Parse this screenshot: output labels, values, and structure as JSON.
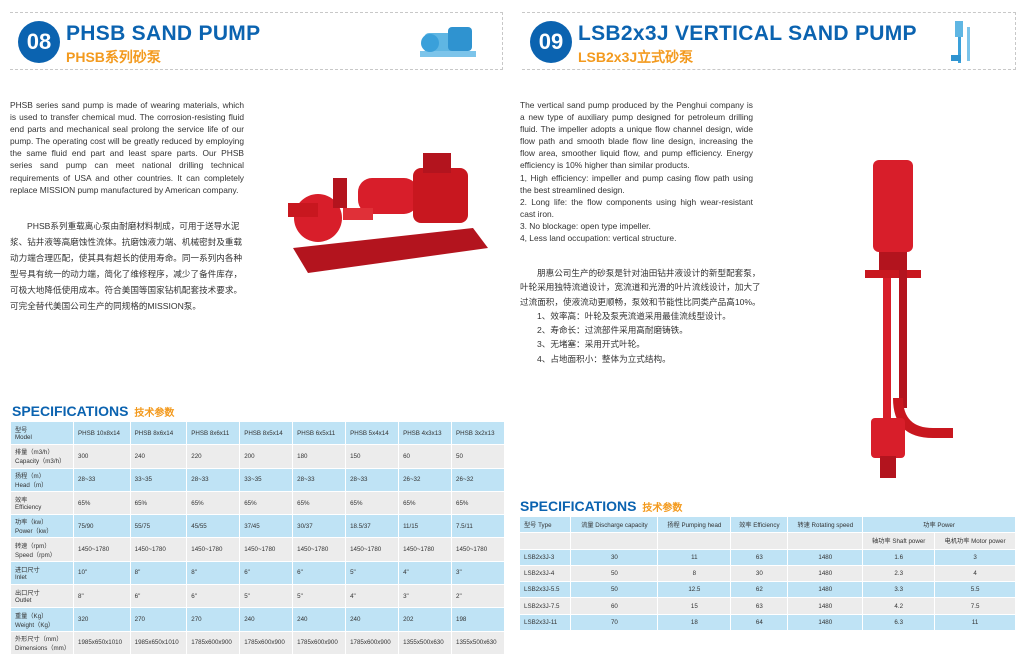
{
  "left": {
    "number": "08",
    "title": "PHSB SAND PUMP",
    "subtitle": "PHSB系列砂泵",
    "description_en": "PHSB series sand pump is made of wearing materials, which is used to transfer chemical mud. The corrosion-resisting fluid end parts and mechanical seal prolong the service life of our pump. The operating cost will be greatly reduced by employing the same fluid end part and least spare parts. Our PHSB series sand pump can meet national drilling technical requirements of USA and other countries. It can completely replace MISSION pump manufactured by American company.",
    "description_cn": "PHSB系列重载离心泵由耐磨材料制成，可用于送导水泥浆、钻井液等高磨蚀性流体。抗磨蚀液力端、机械密封及重载动力端合理匹配，使其具有超长的使用寿命。同一系列内各种型号具有统一的动力端，简化了维修程序，减少了备件库存，可极大地降低使用成本。符合美国等国家钻机配套技术要求。可完全替代美国公司生产的同规格的MISSION泵。",
    "spec_title": "SPECIFICATIONS",
    "spec_title_cn": "技术参数",
    "table": [
      {
        "label_cn": "型号",
        "label_en": "Model",
        "values": [
          "PHSB 10x8x14",
          "PHSB 8x6x14",
          "PHSB 8x6x11",
          "PHSB 8x5x14",
          "PHSB 6x5x11",
          "PHSB 5x4x14",
          "PHSB 4x3x13",
          "PHSB 3x2x13"
        ]
      },
      {
        "label_cn": "排量（m3/h）",
        "label_en": "Capacity（m3/h）",
        "values": [
          "300",
          "240",
          "220",
          "200",
          "180",
          "150",
          "60",
          "50"
        ]
      },
      {
        "label_cn": "扬程（m）",
        "label_en": "Head（m）",
        "values": [
          "28~33",
          "33~35",
          "28~33",
          "33~35",
          "28~33",
          "28~33",
          "26~32",
          "26~32"
        ]
      },
      {
        "label_cn": "效率",
        "label_en": "Efficiency",
        "values": [
          "65%",
          "65%",
          "65%",
          "65%",
          "65%",
          "65%",
          "65%",
          "65%"
        ]
      },
      {
        "label_cn": "功率（kw）",
        "label_en": "Power（kw）",
        "values": [
          "75/90",
          "55/75",
          "45/55",
          "37/45",
          "30/37",
          "18.5/37",
          "11/15",
          "7.5/11"
        ]
      },
      {
        "label_cn": "转速（rpm）",
        "label_en": "Speed（rpm）",
        "values": [
          "1450~1780",
          "1450~1780",
          "1450~1780",
          "1450~1780",
          "1450~1780",
          "1450~1780",
          "1450~1780",
          "1450~1780"
        ]
      },
      {
        "label_cn": "进口尺寸",
        "label_en": "Inlet",
        "values": [
          "10\"",
          "8\"",
          "8\"",
          "6\"",
          "6\"",
          "5\"",
          "4\"",
          "3\""
        ]
      },
      {
        "label_cn": "出口尺寸",
        "label_en": "Outlet",
        "values": [
          "8\"",
          "6\"",
          "6\"",
          "5\"",
          "5\"",
          "4\"",
          "3\"",
          "2\""
        ]
      },
      {
        "label_cn": "重量（Kg）",
        "label_en": "Weight（Kg）",
        "values": [
          "320",
          "270",
          "270",
          "240",
          "240",
          "240",
          "202",
          "198"
        ]
      },
      {
        "label_cn": "外形尺寸（mm）",
        "label_en": "Dimensions（mm）",
        "values": [
          "1985x650x1010",
          "1985x650x1010",
          "1785x600x900",
          "1785x600x900",
          "1785x600x900",
          "1785x600x900",
          "1355x500x630",
          "1355x500x630"
        ]
      }
    ]
  },
  "right": {
    "number": "09",
    "title": "LSB2x3J VERTICAL SAND PUMP",
    "subtitle": "LSB2x3J立式砂泵",
    "description_en": "The vertical sand pump produced by the Penghui company is a new type of auxiliary pump designed for petroleum drilling fluid. The impeller adopts a unique flow channel design, wide flow path and smooth blade flow line design, increasing the flow area, smoother liquid flow, and pump efficiency. Energy efficiency is 10% higher than similar products.",
    "features_en": [
      "1, High efficiency: impeller and pump casing flow path using the best streamlined design.",
      "2. Long life: the flow components using high wear-resistant cast iron.",
      "3. No blockage: open type impeller.",
      "4, Less land occupation: vertical structure."
    ],
    "description_cn": "朋惠公司生产的砂泵是针对油田钻井液设计的新型配套泵，叶轮采用独特流道设计，宽流道和光滑的叶片流线设计，加大了过流面积，使液流动更顺畅，泵效和节能性比同类产品高10%。",
    "features_cn": [
      "1、效率高：叶轮及泵壳流道采用最佳流线型设计。",
      "2、寿命长：过流部件采用高耐磨铸铁。",
      "3、无堵塞：采用开式叶轮。",
      "4、占地面积小：整体为立式结构。"
    ],
    "spec_title": "SPECIFICATIONS",
    "spec_title_cn": "技术参数",
    "headers": [
      "型号 Type",
      "流量 Discharge capacity",
      "扬程 Pumping head",
      "效率 Efficiency",
      "转速 Rotating speed",
      "功率 Power"
    ],
    "subheaders": [
      "轴功率 Shaft power",
      "电机功率 Motor power"
    ],
    "rows": [
      [
        "LSB2x3J-3",
        "30",
        "11",
        "63",
        "1480",
        "1.6",
        "3"
      ],
      [
        "LSB2x3J-4",
        "50",
        "8",
        "30",
        "1480",
        "2.3",
        "4"
      ],
      [
        "LSB2x3J-5.5",
        "50",
        "12.5",
        "62",
        "1480",
        "3.3",
        "5.5"
      ],
      [
        "LSB2x3J-7.5",
        "60",
        "15",
        "63",
        "1480",
        "4.2",
        "7.5"
      ],
      [
        "LSB2x3J-11",
        "70",
        "18",
        "64",
        "1480",
        "6.3",
        "11"
      ]
    ]
  },
  "colors": {
    "brand_blue": "#0b63b0",
    "accent_orange": "#f39a1e",
    "pump_red": "#d81e2a",
    "row_blue": "#bfe3f5",
    "row_gray": "#ececec"
  }
}
